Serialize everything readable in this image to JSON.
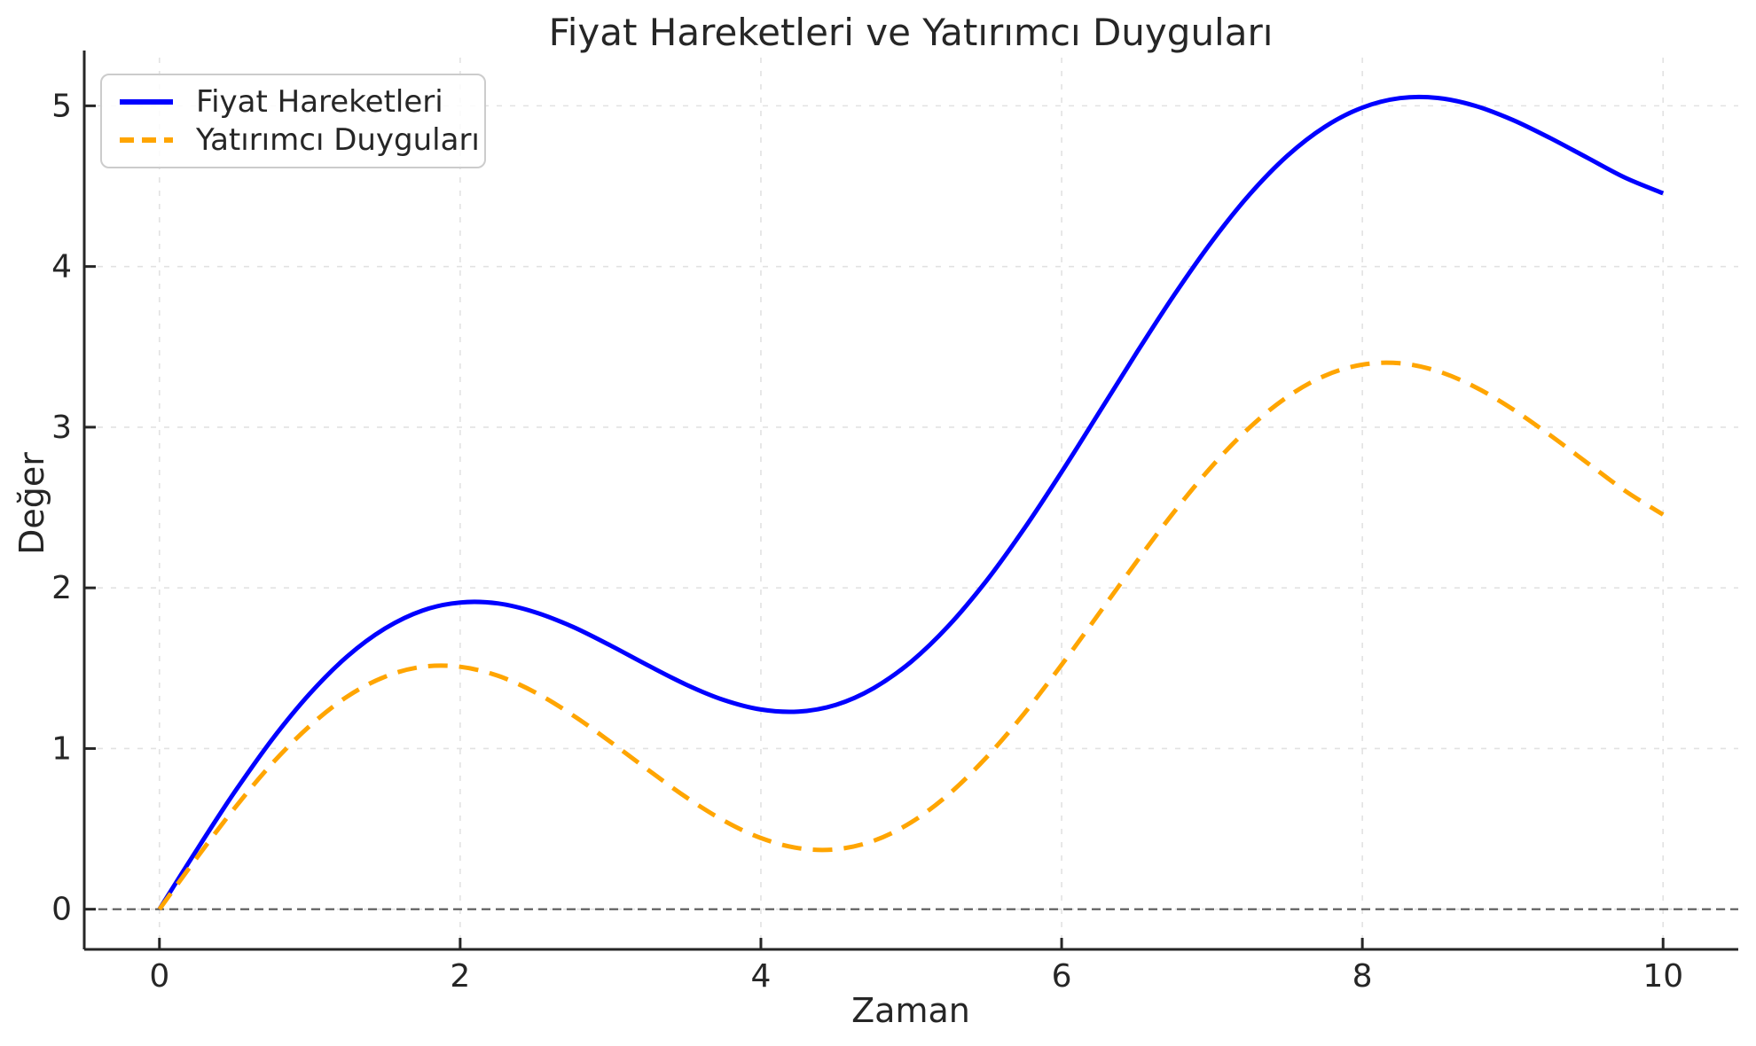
{
  "chart": {
    "title": "Fiyat Hareketleri ve Yatırımcı Duyguları",
    "xlabel": "Zaman",
    "ylabel": "Değer"
  },
  "colors": {
    "text": "#262626",
    "spine": "#262626",
    "grid": "#e2e2e2",
    "zero_line": "#595959",
    "background": "#ffffff",
    "series_blue": "#0000ff",
    "series_orange": "#ffa500"
  },
  "chart_data": {
    "type": "line",
    "title": "Fiyat Hareketleri ve Yatırımcı Duyguları",
    "xlabel": "Zaman",
    "ylabel": "Değer",
    "xlim": [
      -0.5,
      10.5
    ],
    "ylim": [
      -0.25,
      5.3
    ],
    "xticks": [
      0,
      2,
      4,
      6,
      8,
      10
    ],
    "yticks": [
      0,
      1,
      2,
      3,
      4,
      5
    ],
    "grid": true,
    "grid_style": "dashed",
    "zero_line": {
      "y": 0,
      "style": "dashed",
      "color": "#595959"
    },
    "legend_position": "upper left",
    "x": [
      0,
      0.25,
      0.5,
      0.75,
      1,
      1.25,
      1.5,
      1.75,
      2,
      2.25,
      2.5,
      2.75,
      3,
      3.25,
      3.5,
      3.75,
      4,
      4.25,
      4.5,
      4.75,
      5,
      5.25,
      5.5,
      5.75,
      6,
      6.25,
      6.5,
      6.75,
      7,
      7.25,
      7.5,
      7.75,
      8,
      8.25,
      8.5,
      8.75,
      9,
      9.25,
      9.5,
      9.75,
      10
    ],
    "series": [
      {
        "name": "Fiyat Hareketleri",
        "color": "#0000ff",
        "style": "solid",
        "linewidth": 5,
        "values": [
          0,
          0.372,
          0.729,
          1.057,
          1.341,
          1.574,
          1.747,
          1.859,
          1.909,
          1.903,
          1.848,
          1.757,
          1.641,
          1.517,
          1.399,
          1.303,
          1.243,
          1.23,
          1.272,
          1.376,
          1.541,
          1.766,
          2.044,
          2.367,
          2.721,
          3.092,
          3.465,
          3.825,
          4.157,
          4.448,
          4.688,
          4.869,
          4.989,
          5.048,
          5.049,
          5.0,
          4.912,
          4.799,
          4.675,
          4.552,
          4.456
        ]
      },
      {
        "name": "Yatırımcı Duyguları",
        "color": "#ffa500",
        "style": "dashed",
        "linewidth": 5,
        "values": [
          0,
          0.322,
          0.629,
          0.907,
          1.141,
          1.324,
          1.447,
          1.509,
          1.509,
          1.453,
          1.349,
          1.207,
          1.041,
          0.867,
          0.699,
          0.553,
          0.443,
          0.38,
          0.373,
          0.426,
          0.541,
          0.716,
          0.945,
          1.217,
          1.521,
          1.842,
          2.165,
          2.475,
          2.757,
          2.998,
          3.188,
          3.32,
          3.389,
          3.398,
          3.349,
          3.25,
          3.112,
          2.949,
          2.775,
          2.602,
          2.456
        ]
      }
    ]
  }
}
